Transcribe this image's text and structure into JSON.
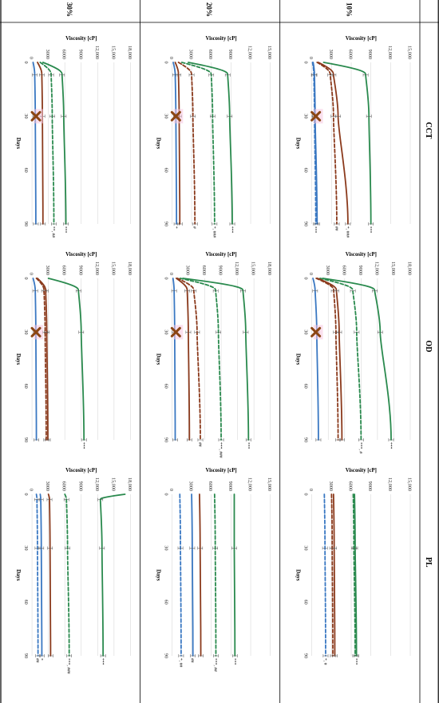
{
  "columns": [
    "CCT",
    "OD",
    "PL"
  ],
  "rows": [
    "10%",
    "20%",
    "30%"
  ],
  "x_label": "Days",
  "y_label": "Viscosity [cP]",
  "x_ticks": [
    "0",
    "30",
    "60",
    "90"
  ],
  "colors": {
    "green": "#2a8a4e",
    "brown": "#8b3a1c",
    "blue": "#3a78c2",
    "marker": "#8b4513",
    "grid": "#d8d8d8",
    "line": "#000000"
  },
  "chart_data": [
    {
      "type": "line",
      "column": "CCT",
      "row": "10%",
      "ylim": [
        0,
        15000
      ],
      "yticks": [
        "0",
        "3000",
        "6000",
        "9000",
        "12,000",
        "15,000"
      ],
      "x": [
        0,
        7,
        30,
        90
      ],
      "marker_x": 30,
      "series": [
        {
          "color": "green",
          "dash": false,
          "values": [
            1800,
            8200,
            8700,
            9000
          ],
          "label": "***"
        },
        {
          "color": "brown",
          "dash": false,
          "values": [
            1000,
            3300,
            4000,
            5500
          ],
          "label": "*, ###"
        },
        {
          "color": "brown",
          "dash": true,
          "values": [
            800,
            2800,
            3300,
            3800
          ],
          "label": "##"
        },
        {
          "color": "blue",
          "dash": false,
          "values": [
            200,
            400,
            500,
            800
          ],
          "label": ""
        },
        {
          "color": "blue",
          "dash": true,
          "values": [
            100,
            300,
            400,
            600
          ],
          "label": "***"
        }
      ]
    },
    {
      "type": "line",
      "column": "OD",
      "row": "10%",
      "ylim": [
        0,
        18000
      ],
      "yticks": [
        "0",
        "3000",
        "6000",
        "9000",
        "12,000",
        "15,000",
        "18,000"
      ],
      "x": [
        0,
        7,
        30,
        90
      ],
      "marker_x": 30,
      "series": [
        {
          "color": "green",
          "dash": false,
          "values": [
            2000,
            11500,
            12500,
            14500
          ],
          "label": "***"
        },
        {
          "color": "green",
          "dash": true,
          "values": [
            1500,
            7500,
            8200,
            9000
          ],
          "label": "***, #"
        },
        {
          "color": "brown",
          "dash": false,
          "values": [
            1000,
            4500,
            5000,
            5500
          ],
          "label": ""
        },
        {
          "color": "brown",
          "dash": true,
          "values": [
            800,
            4000,
            4400,
            4800
          ],
          "label": ""
        },
        {
          "color": "blue",
          "dash": false,
          "values": [
            200,
            600,
            900,
            1200
          ],
          "label": ""
        }
      ]
    },
    {
      "type": "line",
      "column": "PL",
      "row": "10%",
      "ylim": [
        0,
        15000
      ],
      "yticks": [
        "0",
        "3000",
        "6000",
        "9000",
        "12,000",
        "15,000"
      ],
      "x": [
        0,
        30,
        90
      ],
      "series": [
        {
          "color": "green",
          "dash": false,
          "values": [
            6500,
            6600,
            6800
          ],
          "label": "***"
        },
        {
          "color": "green",
          "dash": true,
          "values": [
            6300,
            6400,
            6600
          ],
          "label": ""
        },
        {
          "color": "brown",
          "dash": false,
          "values": [
            3300,
            3400,
            3500
          ],
          "label": ""
        },
        {
          "color": "brown",
          "dash": true,
          "values": [
            3000,
            3100,
            3200
          ],
          "label": ""
        },
        {
          "color": "blue",
          "dash": true,
          "values": [
            1900,
            2000,
            2100
          ],
          "label": "*, #"
        }
      ]
    },
    {
      "type": "line",
      "column": "CCT",
      "row": "20%",
      "ylim": [
        0,
        15000
      ],
      "yticks": [
        "0",
        "3000",
        "6000",
        "9000",
        "12,000",
        "15,000"
      ],
      "x": [
        0,
        7,
        30,
        90
      ],
      "marker_x": 30,
      "series": [
        {
          "color": "green",
          "dash": false,
          "values": [
            2500,
            8500,
            8800,
            9200
          ],
          "label": "***"
        },
        {
          "color": "green",
          "dash": true,
          "values": [
            1500,
            6000,
            6200,
            6500
          ],
          "label": "*, ###"
        },
        {
          "color": "brown",
          "dash": true,
          "values": [
            1000,
            3000,
            3200,
            3500
          ],
          "label": "#"
        },
        {
          "color": "brown",
          "dash": false,
          "values": [
            500,
            1000,
            1100,
            1200
          ],
          "label": ""
        },
        {
          "color": "blue",
          "dash": false,
          "values": [
            200,
            500,
            600,
            700
          ],
          "label": "*"
        }
      ]
    },
    {
      "type": "line",
      "column": "OD",
      "row": "20%",
      "ylim": [
        0,
        18000
      ],
      "yticks": [
        "0",
        "3000",
        "6000",
        "9000",
        "12,000",
        "15,000",
        "18,000"
      ],
      "x": [
        0,
        7,
        30,
        90
      ],
      "marker_x": 30,
      "series": [
        {
          "color": "green",
          "dash": false,
          "values": [
            2000,
            13000,
            13500,
            14000
          ],
          "label": "***"
        },
        {
          "color": "green",
          "dash": true,
          "values": [
            1500,
            8000,
            8500,
            9000
          ],
          "label": "***, ###"
        },
        {
          "color": "brown",
          "dash": true,
          "values": [
            1000,
            4000,
            4600,
            5200
          ],
          "label": "##"
        },
        {
          "color": "brown",
          "dash": false,
          "values": [
            800,
            2800,
            3000,
            3200
          ],
          "label": ""
        },
        {
          "color": "blue",
          "dash": false,
          "values": [
            200,
            400,
            500,
            600
          ],
          "label": ""
        }
      ]
    },
    {
      "type": "line",
      "column": "PL",
      "row": "20%",
      "ylim": [
        0,
        15000
      ],
      "yticks": [
        "0",
        "3000",
        "6000",
        "9000",
        "12,000",
        "15,000"
      ],
      "x": [
        0,
        30,
        90
      ],
      "series": [
        {
          "color": "green",
          "dash": false,
          "values": [
            9500,
            9500,
            9600
          ],
          "label": "***"
        },
        {
          "color": "green",
          "dash": true,
          "values": [
            6500,
            6600,
            6700
          ],
          "label": "***, ##"
        },
        {
          "color": "brown",
          "dash": false,
          "values": [
            4200,
            4300,
            4400
          ],
          "label": ""
        },
        {
          "color": "blue",
          "dash": false,
          "values": [
            3000,
            3100,
            3200
          ],
          "label": "##"
        },
        {
          "color": "blue",
          "dash": true,
          "values": [
            1200,
            1300,
            1400
          ],
          "label": "*, ##"
        }
      ]
    },
    {
      "type": "line",
      "column": "CCT",
      "row": "30%",
      "ylim": [
        0,
        18000
      ],
      "yticks": [
        "0",
        "3000",
        "6000",
        "9000",
        "12,000",
        "15,000",
        "18,000"
      ],
      "x": [
        0,
        7,
        30,
        90
      ],
      "marker_x": 30,
      "series": [
        {
          "color": "green",
          "dash": false,
          "values": [
            2000,
            5500,
            5800,
            6200
          ],
          "label": "***"
        },
        {
          "color": "green",
          "dash": true,
          "values": [
            1500,
            3500,
            3700,
            4000
          ],
          "label": "**, ##"
        },
        {
          "color": "brown",
          "dash": false,
          "values": [
            1000,
            1800,
            1900,
            2000
          ],
          "label": ""
        },
        {
          "color": "blue",
          "dash": false,
          "values": [
            200,
            500,
            600,
            700
          ],
          "label": ""
        }
      ]
    },
    {
      "type": "line",
      "column": "OD",
      "row": "30%",
      "ylim": [
        0,
        18000
      ],
      "yticks": [
        "0",
        "3000",
        "6000",
        "9000",
        "12,000",
        "15,000",
        "18,000"
      ],
      "x": [
        0,
        7,
        30,
        90
      ],
      "marker_x": 30,
      "series": [
        {
          "color": "green",
          "dash": false,
          "values": [
            3000,
            8500,
            9000,
            9500
          ],
          "label": "***"
        },
        {
          "color": "brown",
          "dash": false,
          "values": [
            1000,
            2500,
            2700,
            2900
          ],
          "label": ""
        },
        {
          "color": "brown",
          "dash": true,
          "values": [
            800,
            2200,
            2400,
            2600
          ],
          "label": ""
        },
        {
          "color": "blue",
          "dash": false,
          "values": [
            200,
            600,
            700,
            800
          ],
          "label": ""
        }
      ]
    },
    {
      "type": "line",
      "column": "PL",
      "row": "30%",
      "ylim": [
        0,
        18000
      ],
      "yticks": [
        "0",
        "3000",
        "6000",
        "9000",
        "12,000",
        "15,000",
        "18,000"
      ],
      "x": [
        0,
        3,
        30,
        90
      ],
      "series": [
        {
          "color": "green",
          "dash": false,
          "values": [
            17000,
            12500,
            12800,
            13000
          ],
          "label": "***"
        },
        {
          "color": "green",
          "dash": true,
          "values": [
            6000,
            6300,
            6500,
            6800
          ],
          "label": "***, ###"
        },
        {
          "color": "brown",
          "dash": false,
          "values": [
            3000,
            3200,
            3300,
            3400
          ],
          "label": ""
        },
        {
          "color": "blue",
          "dash": false,
          "values": [
            1500,
            1600,
            1700,
            1800
          ],
          "label": "*"
        },
        {
          "color": "blue",
          "dash": true,
          "values": [
            800,
            900,
            1000,
            1100
          ],
          "label": "##"
        }
      ]
    }
  ]
}
